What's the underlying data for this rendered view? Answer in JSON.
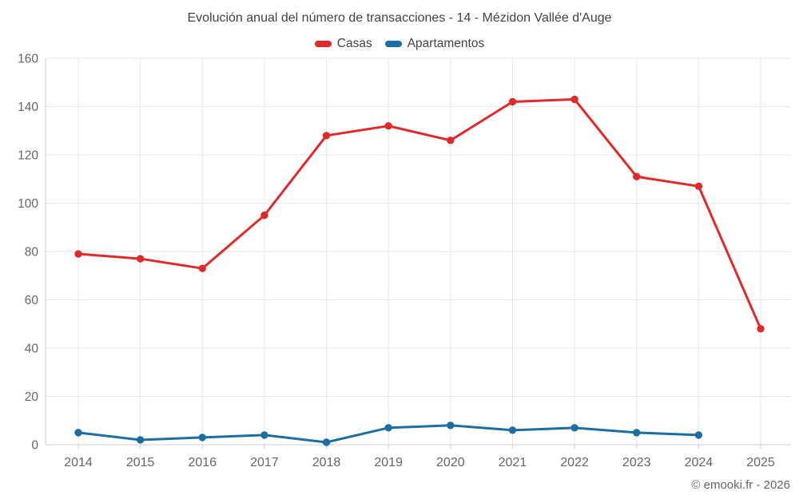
{
  "footer": {
    "copyright": "© emooki.fr - 2026"
  },
  "colors": {
    "grid": "#e7e7e7",
    "axis": "#cccccc",
    "tick_text": "#666666",
    "title_text": "#424242",
    "casas": "#e22929",
    "apartamentos": "#1b6ea4"
  },
  "chart_data": {
    "type": "line",
    "title": "Evolución anual del número de transacciones - 14 - Mézidon Vallée d'Auge",
    "categories": [
      "2014",
      "2015",
      "2016",
      "2017",
      "2018",
      "2019",
      "2020",
      "2021",
      "2022",
      "2023",
      "2024",
      "2025"
    ],
    "series": [
      {
        "name": "Casas",
        "color": "#e22929",
        "values": [
          79,
          77,
          73,
          95,
          128,
          132,
          126,
          142,
          143,
          111,
          107,
          48
        ]
      },
      {
        "name": "Apartamentos",
        "color": "#1b6ea4",
        "values": [
          5,
          2,
          3,
          4,
          1,
          7,
          8,
          6,
          7,
          5,
          4,
          null
        ]
      }
    ],
    "xlabel": "",
    "ylabel": "",
    "ylim": [
      0,
      160
    ],
    "ytick_step": 20,
    "grid": true,
    "legend_position": "top"
  }
}
